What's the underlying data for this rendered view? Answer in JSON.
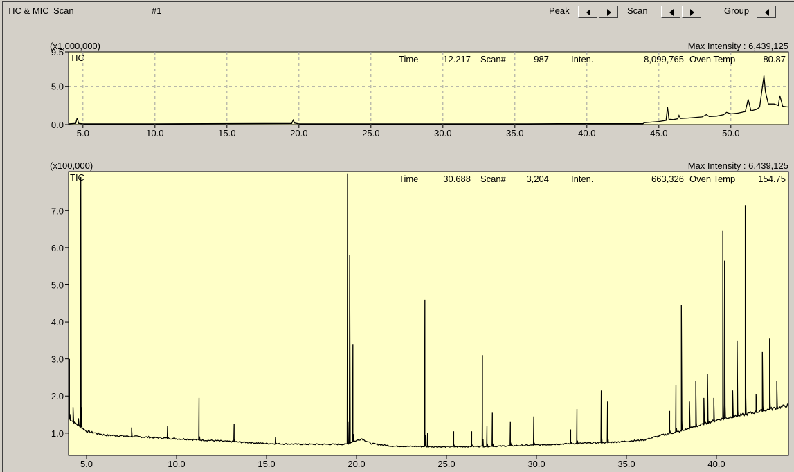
{
  "header": {
    "title": "TIC & MIC",
    "mode": "Scan",
    "index": "#1",
    "nav_groups": [
      {
        "label": "Peak",
        "prev_icon": "left-triangle-icon",
        "next_icon": "right-triangle-icon"
      },
      {
        "label": "Scan",
        "prev_icon": "left-triangle-icon",
        "next_icon": "right-triangle-icon"
      },
      {
        "label": "Group",
        "prev_icon": "left-triangle-icon"
      }
    ]
  },
  "colors": {
    "plot_bg": "#ffffc8",
    "trace": "#000000",
    "grid": "#a0a0a0",
    "window_bg": "#d4d0c8"
  },
  "chart_data": [
    {
      "type": "line",
      "trace_label": "TIC",
      "scale_label": "(x1,000,000)",
      "max_intensity": "Max Intensity : 6,439,125",
      "readout": {
        "time_label": "Time",
        "time": "12.217",
        "scan_label": "Scan#",
        "scan": "987",
        "inten_label": "Inten.",
        "inten": "8,099,765",
        "oven_label": "Oven Temp",
        "oven": "80.87"
      },
      "xlim": [
        4.0,
        54.0
      ],
      "ylim": [
        0,
        9.5
      ],
      "xticks": [
        "5.0",
        "10.0",
        "15.0",
        "20.0",
        "25.0",
        "30.0",
        "35.0",
        "40.0",
        "45.0",
        "50.0"
      ],
      "yticks": [
        "0.0",
        "5.0",
        "9.5"
      ],
      "grid": true,
      "series": [
        {
          "x": [
            4.0,
            4.5,
            4.6,
            4.7,
            5.0,
            10.0,
            19.5,
            19.6,
            19.7,
            20.0,
            24.0,
            30.0,
            35.0,
            38.0,
            40.0,
            43.9,
            44.0,
            45.0,
            45.5,
            45.6,
            45.7,
            46.0,
            46.3,
            46.4,
            46.5,
            47.0,
            48.0,
            48.3,
            48.5,
            49.0,
            49.5,
            49.7,
            50.0,
            50.5,
            51.0,
            51.2,
            51.4,
            51.8,
            52.0,
            52.3,
            52.4,
            52.6,
            53.0,
            53.3,
            53.4,
            53.6,
            54.0
          ],
          "y": [
            0.1,
            0.15,
            0.9,
            0.15,
            0.1,
            0.1,
            0.15,
            0.6,
            0.2,
            0.1,
            0.1,
            0.1,
            0.1,
            0.12,
            0.12,
            0.12,
            0.25,
            0.4,
            0.55,
            2.3,
            0.7,
            0.65,
            0.75,
            1.2,
            0.8,
            0.85,
            1.0,
            1.3,
            1.05,
            1.1,
            1.3,
            1.6,
            1.4,
            1.5,
            1.7,
            3.3,
            1.8,
            2.0,
            2.3,
            6.4,
            4.3,
            2.7,
            2.7,
            2.5,
            3.8,
            2.4,
            2.3
          ]
        }
      ]
    },
    {
      "type": "line",
      "trace_label": "TIC",
      "scale_label": "(x100,000)",
      "max_intensity": "Max Intensity : 6,439,125",
      "readout": {
        "time_label": "Time",
        "time": "30.688",
        "scan_label": "Scan#",
        "scan": "3,204",
        "inten_label": "Inten.",
        "inten": "663,326",
        "oven_label": "Oven Temp",
        "oven": "154.75"
      },
      "xlim": [
        4.0,
        44.0
      ],
      "ylim": [
        0.4,
        8.05
      ],
      "xticks": [
        "5.0",
        "10.0",
        "15.0",
        "20.0",
        "25.0",
        "30.0",
        "35.0",
        "40.0"
      ],
      "yticks": [
        "1.0",
        "2.0",
        "3.0",
        "4.0",
        "5.0",
        "6.0",
        "7.0"
      ],
      "grid": false,
      "baseline": [
        [
          4.0,
          1.4
        ],
        [
          5.0,
          1.05
        ],
        [
          6.0,
          0.95
        ],
        [
          8.0,
          0.9
        ],
        [
          10.0,
          0.85
        ],
        [
          12.0,
          0.8
        ],
        [
          15.0,
          0.72
        ],
        [
          17.0,
          0.7
        ],
        [
          19.4,
          0.7
        ],
        [
          20.3,
          0.85
        ],
        [
          20.8,
          0.72
        ],
        [
          22.0,
          0.65
        ],
        [
          25.0,
          0.63
        ],
        [
          28.0,
          0.65
        ],
        [
          30.0,
          0.68
        ],
        [
          32.0,
          0.72
        ],
        [
          34.0,
          0.75
        ],
        [
          35.0,
          0.78
        ],
        [
          36.0,
          0.82
        ],
        [
          37.0,
          0.95
        ],
        [
          38.0,
          1.05
        ],
        [
          39.0,
          1.2
        ],
        [
          40.0,
          1.35
        ],
        [
          41.0,
          1.45
        ],
        [
          42.0,
          1.55
        ],
        [
          43.0,
          1.65
        ],
        [
          44.0,
          1.75
        ]
      ],
      "peaks": [
        [
          4.05,
          3.0
        ],
        [
          4.25,
          1.7
        ],
        [
          4.55,
          1.4
        ],
        [
          4.68,
          7.9
        ],
        [
          7.5,
          1.15
        ],
        [
          9.5,
          1.2
        ],
        [
          11.25,
          1.95
        ],
        [
          13.2,
          1.25
        ],
        [
          15.5,
          0.9
        ],
        [
          19.5,
          8.0
        ],
        [
          19.62,
          5.8
        ],
        [
          19.8,
          3.4
        ],
        [
          23.8,
          4.6
        ],
        [
          23.95,
          1.0
        ],
        [
          25.4,
          1.05
        ],
        [
          26.4,
          1.05
        ],
        [
          27.0,
          3.1
        ],
        [
          27.25,
          1.2
        ],
        [
          27.55,
          1.55
        ],
        [
          28.55,
          1.3
        ],
        [
          29.85,
          1.45
        ],
        [
          31.9,
          1.1
        ],
        [
          32.25,
          1.65
        ],
        [
          33.6,
          2.15
        ],
        [
          33.95,
          1.85
        ],
        [
          37.4,
          1.6
        ],
        [
          37.75,
          2.3
        ],
        [
          38.05,
          4.45
        ],
        [
          38.5,
          1.85
        ],
        [
          38.85,
          2.4
        ],
        [
          39.3,
          1.95
        ],
        [
          39.5,
          2.6
        ],
        [
          39.85,
          1.95
        ],
        [
          40.35,
          6.45
        ],
        [
          40.45,
          5.65
        ],
        [
          40.9,
          2.15
        ],
        [
          41.15,
          3.5
        ],
        [
          41.6,
          7.15
        ],
        [
          42.2,
          2.05
        ],
        [
          42.55,
          3.2
        ],
        [
          42.95,
          3.55
        ],
        [
          43.35,
          2.4
        ]
      ]
    }
  ]
}
